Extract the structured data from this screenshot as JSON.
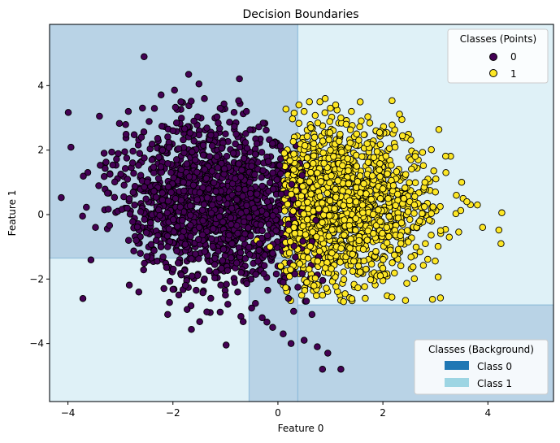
{
  "chart_data": {
    "type": "scatter",
    "title": "Decision Boundaries",
    "xlabel": "Feature 0",
    "ylabel": "Feature 1",
    "xlim": [
      -4.35,
      5.25
    ],
    "ylim": [
      -5.8,
      5.9
    ],
    "xticks": [
      -4,
      -2,
      0,
      2,
      4
    ],
    "yticks": [
      -4,
      -2,
      0,
      2,
      4
    ],
    "xtick_labels": [
      "−4",
      "−2",
      "0",
      "2",
      "4"
    ],
    "ytick_labels": [
      "−4",
      "−2",
      "0",
      "2",
      "4"
    ],
    "grid": false,
    "background_regions": [
      {
        "class": 0,
        "x": [
          -4.35,
          0.38
        ],
        "y": [
          -1.35,
          5.9
        ]
      },
      {
        "class": 0,
        "x": [
          -0.55,
          0.38
        ],
        "y": [
          -5.8,
          -1.35
        ]
      },
      {
        "class": 0,
        "x": [
          0.38,
          5.25
        ],
        "y": [
          -5.8,
          -2.8
        ]
      },
      {
        "class": 1,
        "x": [
          -4.35,
          -0.55
        ],
        "y": [
          -5.8,
          -1.35
        ]
      },
      {
        "class": 1,
        "x": [
          0.38,
          5.25
        ],
        "y": [
          -2.8,
          5.9
        ]
      }
    ],
    "series": [
      {
        "name": "0",
        "color": "#440154",
        "center": [
          -1.2,
          0.3
        ],
        "x": [
          -3.4,
          -3.2,
          -2.85,
          -2.7,
          -2.55,
          -2.6,
          -2.4,
          -2.2,
          -2.1,
          -2.0,
          -1.95,
          -1.85,
          -1.8,
          -1.7,
          -1.6,
          -1.5,
          -1.4,
          -1.3,
          -1.25,
          -1.1,
          -1.0,
          -0.9,
          -0.85,
          -0.75,
          -0.6,
          -0.5,
          -0.4,
          -0.3,
          -0.2,
          -0.1,
          0.0,
          0.1,
          0.2,
          0.3,
          -0.5,
          -0.3,
          -0.1,
          0.1,
          0.25,
          0.5,
          0.65,
          0.75,
          0.85,
          0.95,
          1.2,
          -2.65,
          -2.1,
          -1.9,
          -1.4,
          -1.0,
          -0.7,
          -0.35,
          0.2,
          -0.45
        ],
        "y": [
          3.05,
          1.25,
          3.2,
          -0.8,
          4.9,
          2.4,
          1.7,
          2.0,
          -1.0,
          2.6,
          0.5,
          3.5,
          1.0,
          4.35,
          2.9,
          -0.4,
          3.6,
          1.8,
          0.3,
          3.3,
          2.5,
          -0.1,
          1.9,
          0.8,
          3.2,
          1.5,
          2.2,
          -0.5,
          0.4,
          -1.2,
          -1.6,
          -2.1,
          -2.6,
          -3.0,
          -2.9,
          -3.2,
          -3.5,
          -3.7,
          -4.0,
          -3.9,
          -3.1,
          -4.1,
          -4.8,
          -4.3,
          -4.8,
          -2.4,
          -3.1,
          -1.5,
          -2.0,
          -2.5,
          -1.8,
          -0.9,
          -0.3,
          0.2
        ],
        "spread": [
          0.9,
          1.25
        ],
        "count": 1500
      },
      {
        "name": "1",
        "color": "#fde725",
        "center": [
          1.2,
          0.2
        ],
        "x": [
          0.4,
          0.5,
          0.6,
          0.8,
          0.9,
          1.0,
          1.1,
          1.2,
          1.3,
          1.4,
          1.5,
          1.6,
          1.7,
          1.8,
          2.0,
          2.2,
          2.4,
          2.6,
          2.8,
          3.0,
          3.2,
          3.4,
          3.5,
          3.6,
          3.8,
          3.9,
          4.25,
          0.3,
          0.7,
          1.0,
          1.5,
          2.1,
          2.7,
          3.1,
          0.55,
          0.85,
          1.25,
          1.95,
          -0.15,
          0.05,
          -0.4
        ],
        "y": [
          3.4,
          3.2,
          3.5,
          3.5,
          3.6,
          3.3,
          3.4,
          3.0,
          2.8,
          3.2,
          2.5,
          1.8,
          2.2,
          1.2,
          0.8,
          0.9,
          0.5,
          0.3,
          1.0,
          0.7,
          1.3,
          0.6,
          1.0,
          0.4,
          0.3,
          -0.4,
          -0.9,
          1.4,
          2.4,
          2.0,
          1.5,
          0.5,
          -0.2,
          -0.5,
          -2.1,
          -2.5,
          -2.7,
          -1.9,
          -1.0,
          -1.6,
          -0.8
        ],
        "spread": [
          0.85,
          1.15
        ],
        "count": 1500
      }
    ],
    "legends": [
      {
        "title": "Classes (Points)",
        "position": "top-right",
        "entries": [
          {
            "label": "0",
            "color": "#440154",
            "marker": "circle"
          },
          {
            "label": "1",
            "color": "#fde725",
            "marker": "circle"
          }
        ]
      },
      {
        "title": "Classes (Background)",
        "position": "bottom-right",
        "entries": [
          {
            "label": "Class 0",
            "color": "#1f77b4",
            "marker": "patch"
          },
          {
            "label": "Class 1",
            "color": "#9dd5e3",
            "marker": "patch"
          }
        ]
      }
    ],
    "colors": {
      "region_class0": "#b9d3e6",
      "region_class1": "#dff1f7",
      "region_border": "#7fb2d6",
      "point_edge": "#000000"
    }
  }
}
